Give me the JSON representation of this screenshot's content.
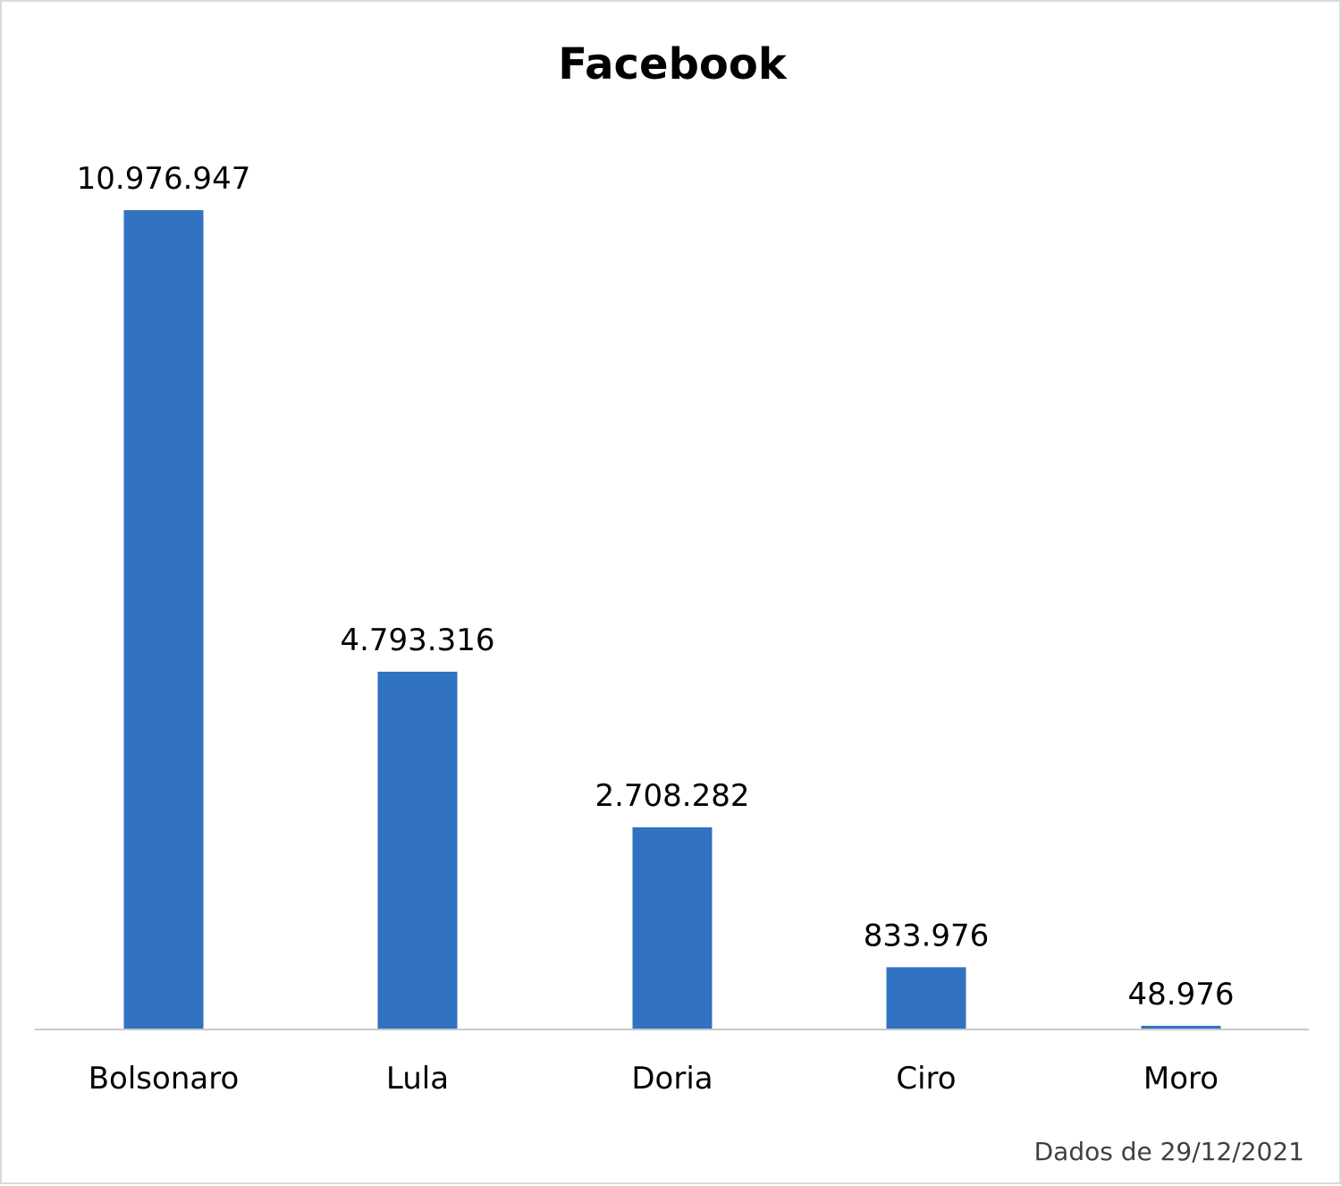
{
  "chart_data": {
    "type": "bar",
    "title": "Facebook",
    "categories": [
      "Bolsonaro",
      "Lula",
      "Doria",
      "Ciro",
      "Moro"
    ],
    "values": [
      10976947,
      4793316,
      2708282,
      833976,
      48976
    ],
    "value_labels": [
      "10.976.947",
      "4.793.316",
      "2.708.282",
      "833.976",
      "48.976"
    ],
    "note": "Dados de 29/12/2021",
    "bar_color": "#3172c1",
    "ylim": [
      0,
      10976947
    ],
    "grid": false,
    "legend": "none"
  }
}
